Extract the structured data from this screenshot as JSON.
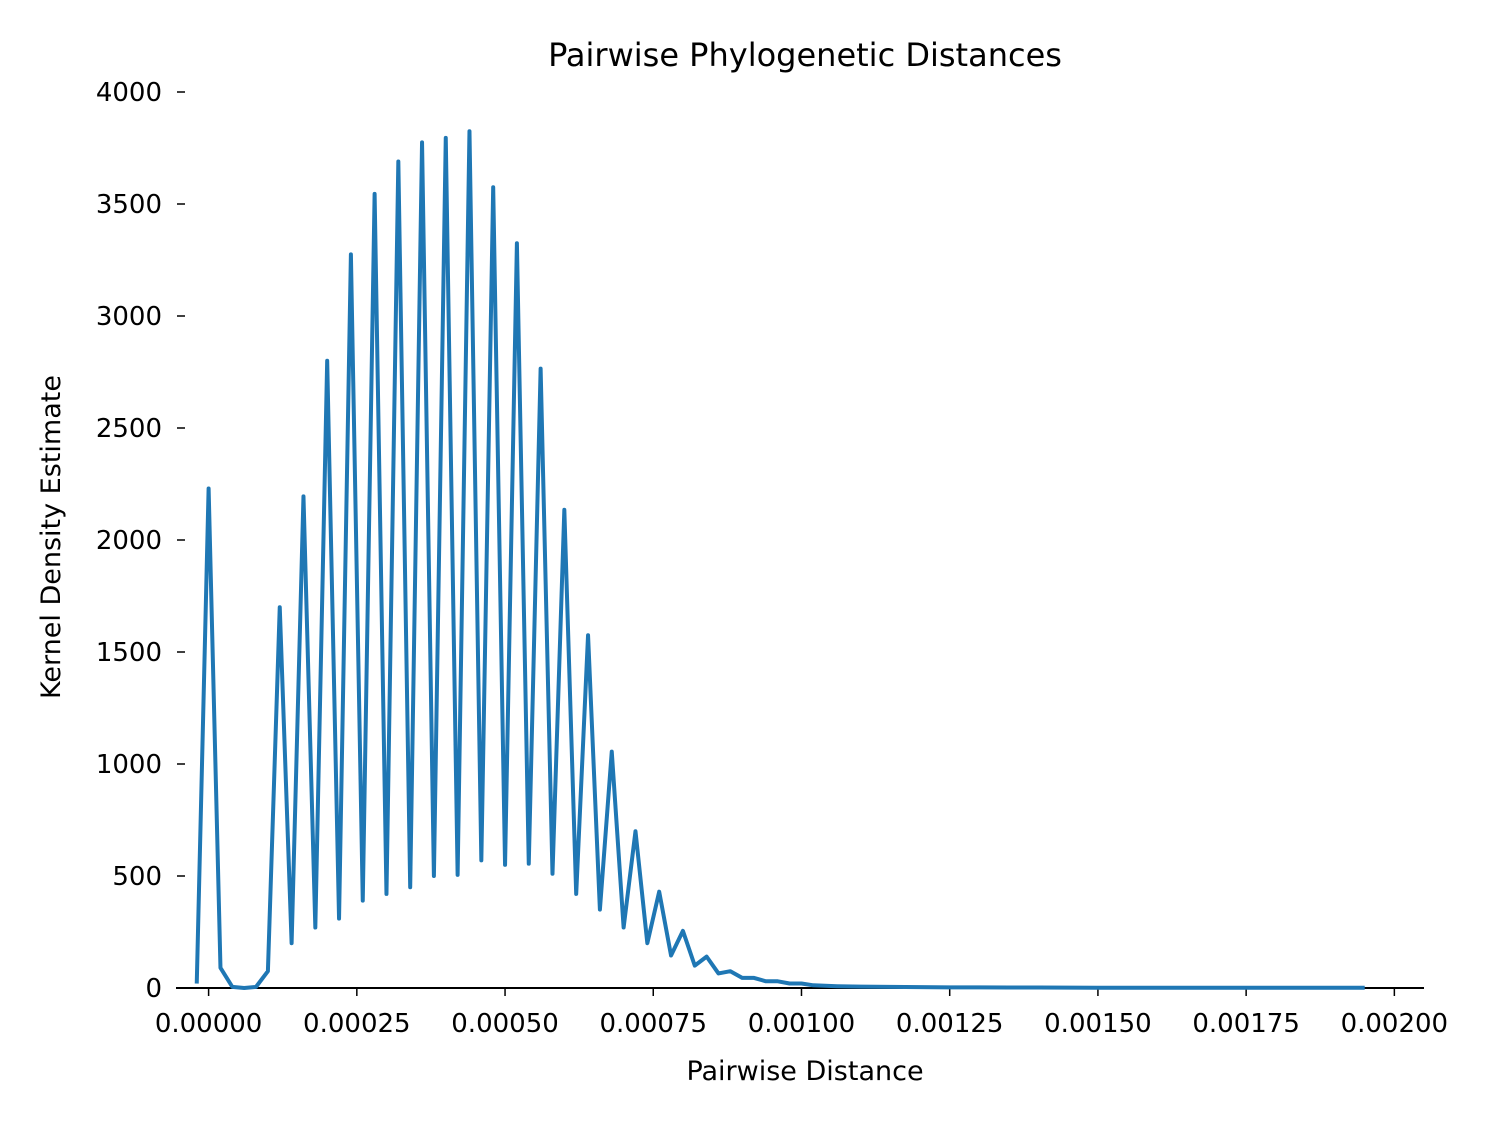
{
  "chart_data": {
    "type": "line",
    "title": "Pairwise Phylogenetic Distances",
    "xlabel": "Pairwise Distance",
    "ylabel": "Kernel Density Estimate",
    "xlim": [
      -5.5e-05,
      0.00205
    ],
    "ylim": [
      0,
      4000
    ],
    "xticks": [
      0.0,
      0.00025,
      0.0005,
      0.00075,
      0.001,
      0.00125,
      0.0015,
      0.00175,
      0.002
    ],
    "xtick_labels": [
      "0.00000",
      "0.00025",
      "0.00050",
      "0.00075",
      "0.00100",
      "0.00125",
      "0.00150",
      "0.00175",
      "0.00200"
    ],
    "yticks": [
      0,
      500,
      1000,
      1500,
      2000,
      2500,
      3000,
      3500,
      4000
    ],
    "ytick_labels": [
      "0",
      "500",
      "1000",
      "1500",
      "2000",
      "2500",
      "3000",
      "3500",
      "4000"
    ],
    "grid": false,
    "color": "#1f77b4",
    "series": [
      {
        "x": [
          -2e-05,
          0.0,
          2e-05,
          4e-05,
          6e-05,
          8e-05,
          0.0001,
          0.00012,
          0.00014,
          0.00016,
          0.00018,
          0.0002,
          0.00022,
          0.00024,
          0.00026,
          0.00028,
          0.0003,
          0.00032,
          0.00034,
          0.00036,
          0.00038,
          0.0004,
          0.00042,
          0.00044,
          0.00046,
          0.00048,
          0.0005,
          0.00052,
          0.00054,
          0.00056,
          0.00058,
          0.0006,
          0.00062,
          0.00064,
          0.00066,
          0.00068,
          0.0007,
          0.00072,
          0.00074,
          0.00076,
          0.00078,
          0.0008,
          0.00082,
          0.00084,
          0.00086,
          0.00088,
          0.0009,
          0.00092,
          0.00094,
          0.00096,
          0.00098,
          0.001,
          0.00102,
          0.00104,
          0.00106,
          0.0011,
          0.00115,
          0.0012,
          0.00125,
          0.0013,
          0.00135,
          0.0014,
          0.0015,
          0.0016,
          0.0017,
          0.0018,
          0.0019,
          0.00195
        ],
        "y": [
          20,
          2230,
          90,
          5,
          0,
          5,
          75,
          1700,
          200,
          2195,
          270,
          2800,
          310,
          3275,
          390,
          3545,
          420,
          3690,
          450,
          3775,
          500,
          3795,
          505,
          3825,
          570,
          3575,
          550,
          3325,
          555,
          2765,
          510,
          2135,
          420,
          1575,
          350,
          1055,
          270,
          700,
          200,
          430,
          145,
          255,
          100,
          140,
          65,
          75,
          45,
          45,
          30,
          30,
          20,
          20,
          12,
          10,
          8,
          6,
          5,
          4,
          3,
          3,
          2,
          2,
          1,
          1,
          1,
          1,
          1,
          1
        ]
      }
    ]
  }
}
